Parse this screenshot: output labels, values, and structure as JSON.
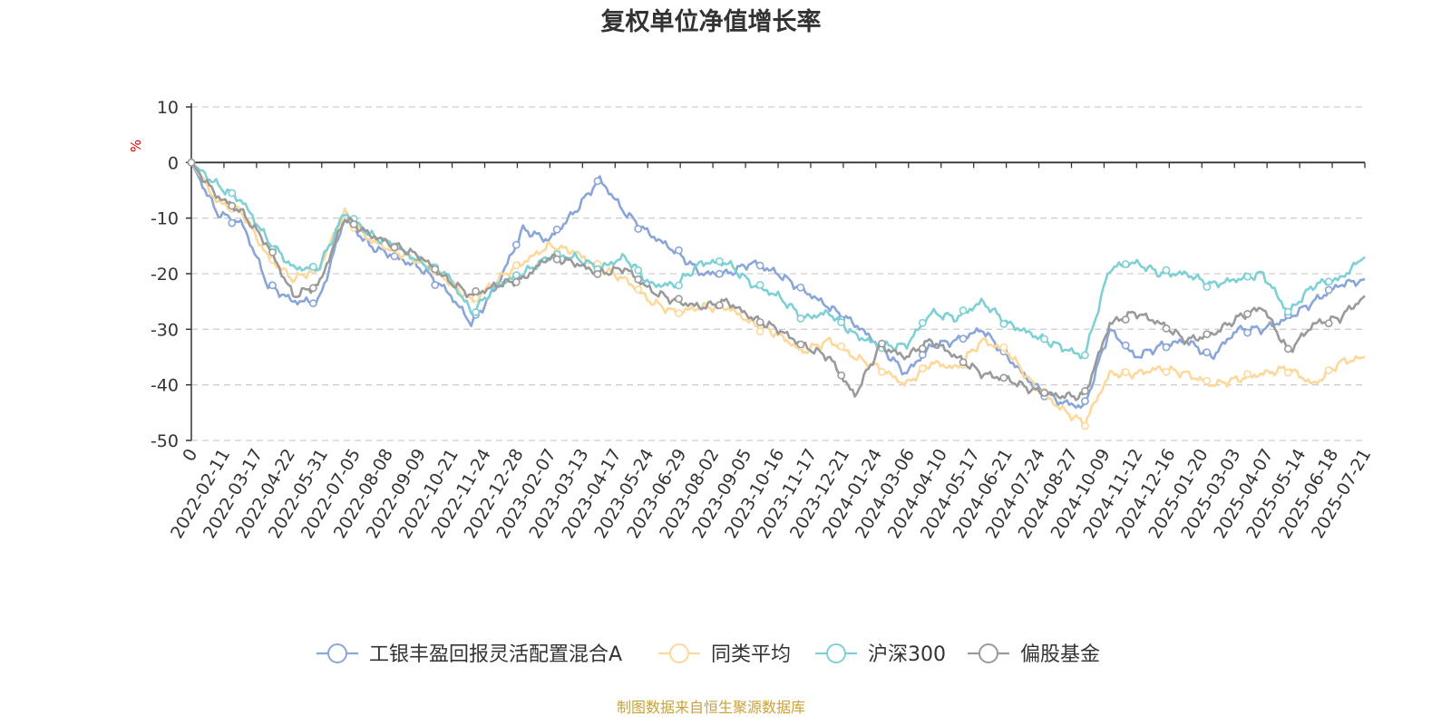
{
  "page": {
    "source_note": "制图数据来自恒生聚源数据库"
  },
  "chart_data": {
    "type": "line",
    "title": "复权单位净值增长率",
    "ylabel": "%",
    "ylim": [
      -50,
      10
    ],
    "yticks": [
      10,
      0,
      -10,
      -20,
      -30,
      -40,
      -50
    ],
    "grid": true,
    "legend_position": "bottom",
    "x_tick_labels": [
      "0",
      "2022-02-11",
      "2022-03-17",
      "2022-04-22",
      "2022-05-31",
      "2022-07-05",
      "2022-08-08",
      "2022-09-09",
      "2022-10-21",
      "2022-11-24",
      "2022-12-28",
      "2023-02-07",
      "2023-03-13",
      "2023-04-17",
      "2023-05-24",
      "2023-06-29",
      "2023-08-02",
      "2023-09-05",
      "2023-10-16",
      "2023-11-17",
      "2023-12-21",
      "2024-01-24",
      "2024-03-06",
      "2024-04-10",
      "2024-05-17",
      "2024-06-21",
      "2024-07-24",
      "2024-08-27",
      "2024-10-09",
      "2024-11-12",
      "2024-12-16",
      "2025-01-20",
      "2025-03-03",
      "2025-04-07",
      "2025-05-14",
      "2025-06-18",
      "2025-07-21"
    ],
    "series": [
      {
        "name": "工银丰盈回报灵活配置混合A",
        "color": "#8aa6d8",
        "values": [
          0,
          -9,
          -11,
          -22,
          -25,
          -25,
          -10,
          -15,
          -17,
          -19,
          -23,
          -29,
          -22,
          -12,
          -14,
          -9,
          -3,
          -9,
          -13,
          -16,
          -20,
          -20,
          -18,
          -20,
          -23,
          -26,
          -29,
          -33,
          -38,
          -33,
          -32,
          -30,
          -35,
          -40,
          -43,
          -44,
          -30,
          -35,
          -33,
          -32,
          -35,
          -30,
          -30,
          -28,
          -25,
          -22,
          -21
        ]
      },
      {
        "name": "同类平均",
        "color": "#fdd89b",
        "values": [
          0,
          -7,
          -9,
          -17,
          -21,
          -19,
          -9,
          -14,
          -16,
          -18,
          -21,
          -25,
          -21,
          -18,
          -15,
          -16,
          -19,
          -21,
          -25,
          -27,
          -26,
          -26,
          -29,
          -31,
          -34,
          -32,
          -35,
          -37,
          -40,
          -36,
          -37,
          -32,
          -34,
          -40,
          -44,
          -47,
          -38,
          -38,
          -37,
          -38,
          -40,
          -39,
          -38,
          -37,
          -40,
          -36,
          -35
        ]
      },
      {
        "name": "沪深300",
        "color": "#7fd0d4",
        "values": [
          0,
          -4,
          -7,
          -14,
          -19,
          -19,
          -9,
          -13,
          -15,
          -18,
          -20,
          -27,
          -22,
          -20,
          -17,
          -17,
          -19,
          -17,
          -22,
          -22,
          -18,
          -18,
          -22,
          -24,
          -28,
          -27,
          -31,
          -33,
          -33,
          -27,
          -28,
          -25,
          -29,
          -31,
          -33,
          -35,
          -19,
          -18,
          -20,
          -20,
          -22,
          -21,
          -20,
          -27,
          -22,
          -21,
          -17
        ]
      },
      {
        "name": "偏股基金",
        "color": "#9a9a9a",
        "values": [
          0,
          -6,
          -9,
          -15,
          -24,
          -22,
          -10,
          -13,
          -15,
          -17,
          -21,
          -24,
          -22,
          -21,
          -17,
          -18,
          -20,
          -19,
          -23,
          -25,
          -26,
          -25,
          -28,
          -30,
          -33,
          -35,
          -42,
          -33,
          -35,
          -32,
          -35,
          -38,
          -39,
          -41,
          -42,
          -42,
          -29,
          -27,
          -29,
          -32,
          -31,
          -28,
          -26,
          -34,
          -29,
          -28,
          -24
        ]
      }
    ]
  }
}
